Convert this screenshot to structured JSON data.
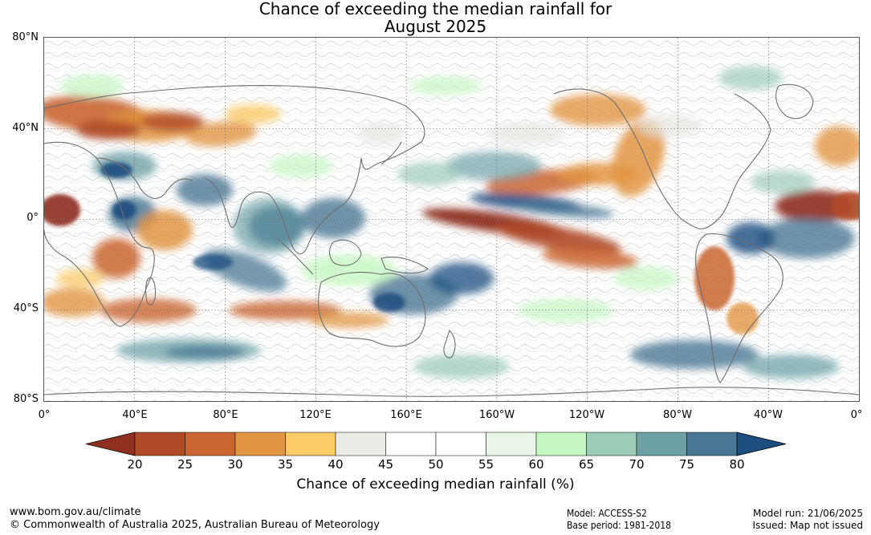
{
  "title": {
    "line1": "Chance of exceeding the median rainfall for",
    "line2": "August 2025"
  },
  "axes": {
    "lat_labels": [
      "80°N",
      "40°N",
      "0°",
      "40°S",
      "80°S"
    ],
    "lon_labels": [
      "0°",
      "40°E",
      "80°E",
      "120°E",
      "160°E",
      "160°W",
      "120°W",
      "80°W",
      "40°W",
      "0°"
    ]
  },
  "colorbar": {
    "ticks": [
      "20",
      "25",
      "30",
      "35",
      "40",
      "45",
      "50",
      "55",
      "60",
      "65",
      "70",
      "75",
      "80"
    ],
    "colors": [
      "#8e2f1f",
      "#b04a28",
      "#c96530",
      "#e29542",
      "#fbcb68",
      "#ebebe6",
      "#ffffff",
      "#ffffff",
      "#e9f5e6",
      "#c5f7c2",
      "#9ccbb8",
      "#6ea1a6",
      "#4a7894",
      "#1c4e80"
    ],
    "label": "Chance of exceeding median rainfall (%)"
  },
  "footer": {
    "website": "www.bom.gov.au/climate",
    "copyright": "© Commonwealth of Australia 2025, Australian Bureau of Meteorology",
    "model": "Model: ACCESS-S2",
    "base_period": "Base period: 1981-2018",
    "model_run": "Model run: 21/06/2025",
    "issued": "Issued: Map not issued"
  },
  "map": {
    "projection": "equirectangular",
    "lon_range": [
      0,
      360
    ],
    "lat_range": [
      -80,
      80
    ],
    "grid": true
  }
}
